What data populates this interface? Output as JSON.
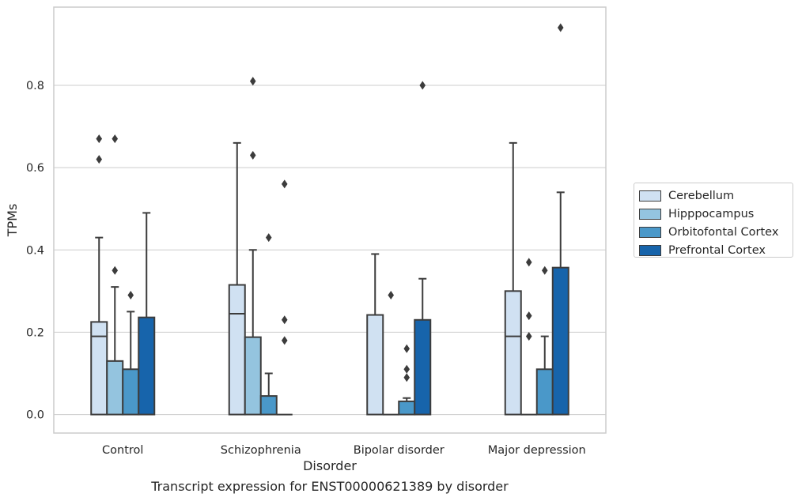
{
  "caption": "Transcript expression for ENST00000621389 by disorder",
  "chart_data": {
    "type": "box",
    "xlabel": "Disorder",
    "ylabel": "TPMs",
    "ylim": [
      -0.045,
      0.99
    ],
    "yticks": [
      0.0,
      0.2,
      0.4,
      0.6,
      0.8
    ],
    "ytick_labels": [
      "0.0",
      "0.2",
      "0.4",
      "0.6",
      "0.8"
    ],
    "grid": "horizontal",
    "legend_position": "right",
    "categories": [
      "Control",
      "Schizophrenia",
      "Bipolar disorder",
      "Major depression"
    ],
    "series": [
      {
        "name": "Cerebellum",
        "color": "#d0e1f2",
        "boxes": [
          {
            "q1": 0.0,
            "median": 0.19,
            "q3": 0.225,
            "whisker_low": 0.0,
            "whisker_high": 0.43,
            "outliers": [
              0.62,
              0.67
            ]
          },
          {
            "q1": 0.0,
            "median": 0.245,
            "q3": 0.315,
            "whisker_low": 0.0,
            "whisker_high": 0.66,
            "outliers": []
          },
          {
            "q1": 0.0,
            "median": 0.0,
            "q3": 0.242,
            "whisker_low": 0.0,
            "whisker_high": 0.39,
            "outliers": []
          },
          {
            "q1": 0.0,
            "median": 0.19,
            "q3": 0.3,
            "whisker_low": 0.0,
            "whisker_high": 0.66,
            "outliers": []
          }
        ]
      },
      {
        "name": "Hipppocampus",
        "color": "#94c4df",
        "boxes": [
          {
            "q1": 0.0,
            "median": 0.0,
            "q3": 0.13,
            "whisker_low": 0.0,
            "whisker_high": 0.31,
            "outliers": [
              0.35,
              0.67
            ]
          },
          {
            "q1": 0.0,
            "median": 0.0,
            "q3": 0.188,
            "whisker_low": 0.0,
            "whisker_high": 0.4,
            "outliers": [
              0.63,
              0.81
            ]
          },
          {
            "q1": 0.0,
            "median": 0.0,
            "q3": 0.0,
            "whisker_low": 0.0,
            "whisker_high": 0.0,
            "outliers": [
              0.29
            ]
          },
          {
            "q1": 0.0,
            "median": 0.0,
            "q3": 0.0,
            "whisker_low": 0.0,
            "whisker_high": 0.0,
            "outliers": [
              0.19,
              0.24,
              0.37
            ]
          }
        ]
      },
      {
        "name": "Orbitofontal Cortex",
        "color": "#4a98c9",
        "boxes": [
          {
            "q1": 0.0,
            "median": 0.0,
            "q3": 0.11,
            "whisker_low": 0.0,
            "whisker_high": 0.25,
            "outliers": [
              0.29
            ]
          },
          {
            "q1": 0.0,
            "median": 0.0,
            "q3": 0.045,
            "whisker_low": 0.0,
            "whisker_high": 0.1,
            "outliers": [
              0.43
            ]
          },
          {
            "q1": 0.0,
            "median": 0.0,
            "q3": 0.032,
            "whisker_low": 0.0,
            "whisker_high": 0.04,
            "outliers": [
              0.09,
              0.11,
              0.16
            ]
          },
          {
            "q1": 0.0,
            "median": 0.0,
            "q3": 0.11,
            "whisker_low": 0.0,
            "whisker_high": 0.19,
            "outliers": [
              0.35
            ]
          }
        ]
      },
      {
        "name": "Prefrontal Cortex",
        "color": "#1764ab",
        "boxes": [
          {
            "q1": 0.0,
            "median": 0.0,
            "q3": 0.236,
            "whisker_low": 0.0,
            "whisker_high": 0.49,
            "outliers": []
          },
          {
            "q1": 0.0,
            "median": 0.0,
            "q3": 0.0,
            "whisker_low": 0.0,
            "whisker_high": 0.0,
            "outliers": [
              0.18,
              0.23,
              0.56
            ]
          },
          {
            "q1": 0.0,
            "median": 0.0,
            "q3": 0.23,
            "whisker_low": 0.0,
            "whisker_high": 0.33,
            "outliers": [
              0.8
            ]
          },
          {
            "q1": 0.0,
            "median": 0.0,
            "q3": 0.357,
            "whisker_low": 0.0,
            "whisker_high": 0.54,
            "outliers": [
              0.94
            ]
          }
        ]
      }
    ]
  }
}
